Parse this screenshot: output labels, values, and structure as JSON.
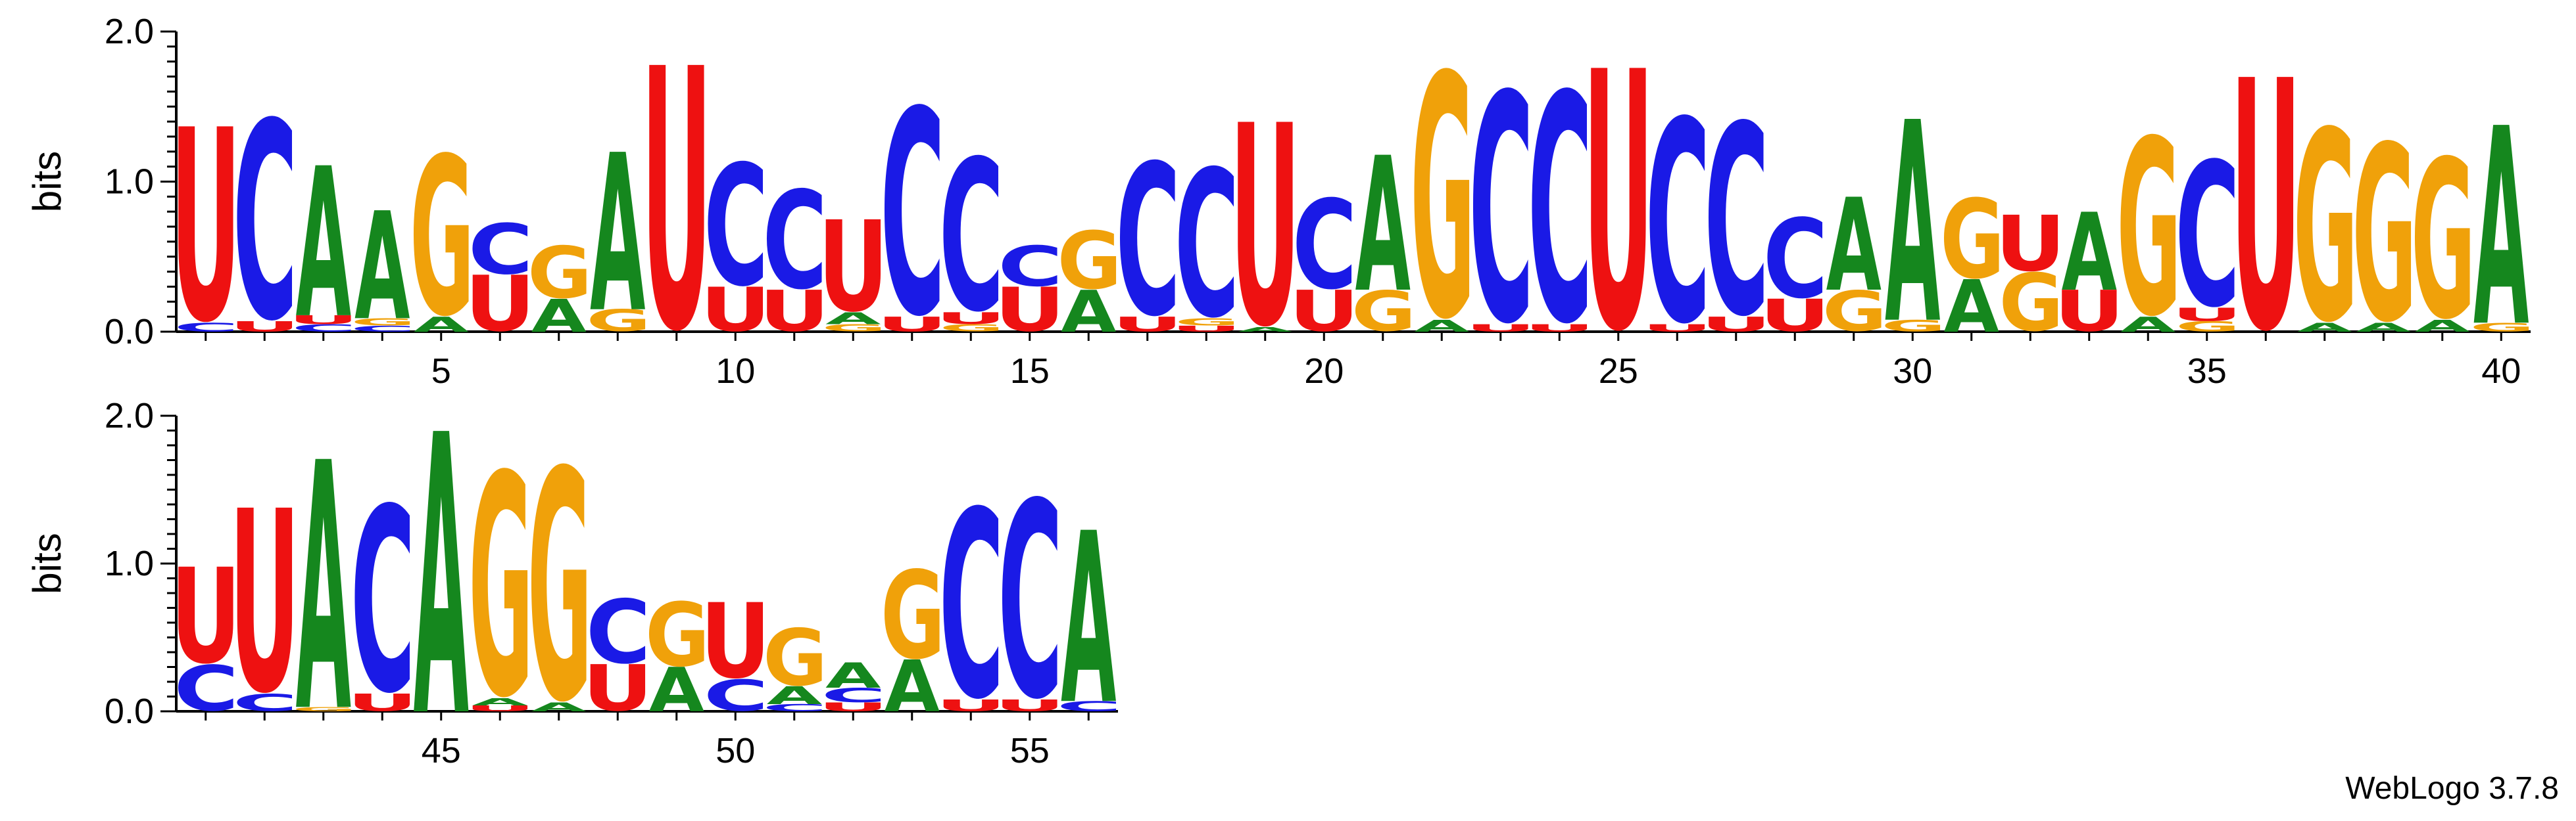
{
  "colors": {
    "A": "#15871e",
    "C": "#1a1ae6",
    "G": "#f0a10a",
    "U": "#ee1111"
  },
  "credit": "WebLogo 3.7.8",
  "chart_data": {
    "type": "sequence-logo",
    "ylabel": "bits",
    "ylim": [
      0,
      2.0
    ],
    "yticks": [
      "0.0",
      "1.0",
      "2.0"
    ],
    "xticks": [
      5,
      10,
      15,
      20,
      25,
      30,
      35,
      40,
      45,
      50,
      55
    ],
    "rows": [
      {
        "start": 1,
        "end": 40
      },
      {
        "start": 41,
        "end": 56
      }
    ],
    "positions": [
      {
        "pos": 1,
        "stack": [
          [
            "C",
            0.06
          ],
          [
            "U",
            1.31
          ]
        ]
      },
      {
        "pos": 2,
        "stack": [
          [
            "U",
            0.07
          ],
          [
            "C",
            1.37
          ]
        ]
      },
      {
        "pos": 3,
        "stack": [
          [
            "C",
            0.05
          ],
          [
            "U",
            0.06
          ],
          [
            "A",
            1.0
          ]
        ]
      },
      {
        "pos": 4,
        "stack": [
          [
            "C",
            0.04
          ],
          [
            "G",
            0.05
          ],
          [
            "A",
            0.72
          ]
        ]
      },
      {
        "pos": 5,
        "stack": [
          [
            "A",
            0.1
          ],
          [
            "G",
            1.1
          ]
        ]
      },
      {
        "pos": 6,
        "stack": [
          [
            "U",
            0.38
          ],
          [
            "C",
            0.35
          ]
        ]
      },
      {
        "pos": 7,
        "stack": [
          [
            "A",
            0.22
          ],
          [
            "G",
            0.36
          ]
        ]
      },
      {
        "pos": 8,
        "stack": [
          [
            "G",
            0.15
          ],
          [
            "A",
            1.05
          ]
        ]
      },
      {
        "pos": 9,
        "stack": [
          [
            "U",
            1.78
          ]
        ]
      },
      {
        "pos": 10,
        "stack": [
          [
            "U",
            0.3
          ],
          [
            "C",
            0.84
          ]
        ]
      },
      {
        "pos": 11,
        "stack": [
          [
            "U",
            0.28
          ],
          [
            "C",
            0.68
          ]
        ]
      },
      {
        "pos": 12,
        "stack": [
          [
            "G",
            0.05
          ],
          [
            "A",
            0.08
          ],
          [
            "U",
            0.62
          ]
        ]
      },
      {
        "pos": 13,
        "stack": [
          [
            "U",
            0.1
          ],
          [
            "C",
            1.42
          ]
        ]
      },
      {
        "pos": 14,
        "stack": [
          [
            "G",
            0.05
          ],
          [
            "U",
            0.08
          ],
          [
            "C",
            1.05
          ]
        ]
      },
      {
        "pos": 15,
        "stack": [
          [
            "U",
            0.3
          ],
          [
            "C",
            0.28
          ]
        ]
      },
      {
        "pos": 16,
        "stack": [
          [
            "A",
            0.28
          ],
          [
            "G",
            0.4
          ]
        ]
      },
      {
        "pos": 17,
        "stack": [
          [
            "U",
            0.1
          ],
          [
            "C",
            1.05
          ]
        ]
      },
      {
        "pos": 18,
        "stack": [
          [
            "U",
            0.04
          ],
          [
            "G",
            0.05
          ],
          [
            "C",
            1.02
          ]
        ]
      },
      {
        "pos": 19,
        "stack": [
          [
            "A",
            0.03
          ],
          [
            "U",
            1.37
          ]
        ]
      },
      {
        "pos": 20,
        "stack": [
          [
            "U",
            0.28
          ],
          [
            "C",
            0.62
          ]
        ]
      },
      {
        "pos": 21,
        "stack": [
          [
            "G",
            0.28
          ],
          [
            "A",
            0.9
          ]
        ]
      },
      {
        "pos": 22,
        "stack": [
          [
            "A",
            0.08
          ],
          [
            "G",
            1.68
          ]
        ]
      },
      {
        "pos": 23,
        "stack": [
          [
            "U",
            0.05
          ],
          [
            "C",
            1.58
          ]
        ]
      },
      {
        "pos": 24,
        "stack": [
          [
            "U",
            0.05
          ],
          [
            "C",
            1.58
          ]
        ]
      },
      {
        "pos": 25,
        "stack": [
          [
            "U",
            1.76
          ]
        ]
      },
      {
        "pos": 26,
        "stack": [
          [
            "U",
            0.05
          ],
          [
            "C",
            1.4
          ]
        ]
      },
      {
        "pos": 27,
        "stack": [
          [
            "U",
            0.1
          ],
          [
            "C",
            1.32
          ]
        ]
      },
      {
        "pos": 28,
        "stack": [
          [
            "U",
            0.22
          ],
          [
            "C",
            0.55
          ]
        ]
      },
      {
        "pos": 29,
        "stack": [
          [
            "G",
            0.28
          ],
          [
            "A",
            0.62
          ]
        ]
      },
      {
        "pos": 30,
        "stack": [
          [
            "G",
            0.08
          ],
          [
            "A",
            1.34
          ]
        ]
      },
      {
        "pos": 31,
        "stack": [
          [
            "A",
            0.35
          ],
          [
            "G",
            0.55
          ]
        ]
      },
      {
        "pos": 32,
        "stack": [
          [
            "G",
            0.4
          ],
          [
            "U",
            0.38
          ]
        ]
      },
      {
        "pos": 33,
        "stack": [
          [
            "U",
            0.28
          ],
          [
            "A",
            0.52
          ]
        ]
      },
      {
        "pos": 34,
        "stack": [
          [
            "A",
            0.1
          ],
          [
            "G",
            1.22
          ]
        ]
      },
      {
        "pos": 35,
        "stack": [
          [
            "G",
            0.07
          ],
          [
            "U",
            0.09
          ],
          [
            "C",
            1.0
          ]
        ]
      },
      {
        "pos": 36,
        "stack": [
          [
            "U",
            1.7
          ]
        ]
      },
      {
        "pos": 37,
        "stack": [
          [
            "A",
            0.06
          ],
          [
            "G",
            1.32
          ]
        ]
      },
      {
        "pos": 38,
        "stack": [
          [
            "A",
            0.06
          ],
          [
            "G",
            1.22
          ]
        ]
      },
      {
        "pos": 39,
        "stack": [
          [
            "A",
            0.08
          ],
          [
            "G",
            1.1
          ]
        ]
      },
      {
        "pos": 40,
        "stack": [
          [
            "G",
            0.06
          ],
          [
            "A",
            1.32
          ]
        ]
      },
      {
        "pos": 41,
        "stack": [
          [
            "C",
            0.32
          ],
          [
            "U",
            0.66
          ]
        ]
      },
      {
        "pos": 42,
        "stack": [
          [
            "C",
            0.12
          ],
          [
            "U",
            1.26
          ]
        ]
      },
      {
        "pos": 43,
        "stack": [
          [
            "G",
            0.03
          ],
          [
            "A",
            1.68
          ]
        ]
      },
      {
        "pos": 44,
        "stack": [
          [
            "U",
            0.12
          ],
          [
            "C",
            1.3
          ]
        ]
      },
      {
        "pos": 45,
        "stack": [
          [
            "A",
            1.9
          ]
        ]
      },
      {
        "pos": 46,
        "stack": [
          [
            "U",
            0.04
          ],
          [
            "A",
            0.05
          ],
          [
            "G",
            1.56
          ]
        ]
      },
      {
        "pos": 47,
        "stack": [
          [
            "A",
            0.06
          ],
          [
            "G",
            1.62
          ]
        ]
      },
      {
        "pos": 48,
        "stack": [
          [
            "U",
            0.32
          ],
          [
            "C",
            0.45
          ]
        ]
      },
      {
        "pos": 49,
        "stack": [
          [
            "A",
            0.3
          ],
          [
            "G",
            0.45
          ]
        ]
      },
      {
        "pos": 50,
        "stack": [
          [
            "C",
            0.22
          ],
          [
            "U",
            0.52
          ]
        ]
      },
      {
        "pos": 51,
        "stack": [
          [
            "C",
            0.05
          ],
          [
            "A",
            0.12
          ],
          [
            "G",
            0.4
          ]
        ]
      },
      {
        "pos": 52,
        "stack": [
          [
            "U",
            0.06
          ],
          [
            "C",
            0.1
          ],
          [
            "A",
            0.17
          ]
        ]
      },
      {
        "pos": 53,
        "stack": [
          [
            "A",
            0.35
          ],
          [
            "G",
            0.62
          ]
        ]
      },
      {
        "pos": 54,
        "stack": [
          [
            "U",
            0.08
          ],
          [
            "C",
            1.32
          ]
        ]
      },
      {
        "pos": 55,
        "stack": [
          [
            "U",
            0.08
          ],
          [
            "C",
            1.38
          ]
        ]
      },
      {
        "pos": 56,
        "stack": [
          [
            "C",
            0.07
          ],
          [
            "A",
            1.16
          ]
        ]
      }
    ]
  }
}
